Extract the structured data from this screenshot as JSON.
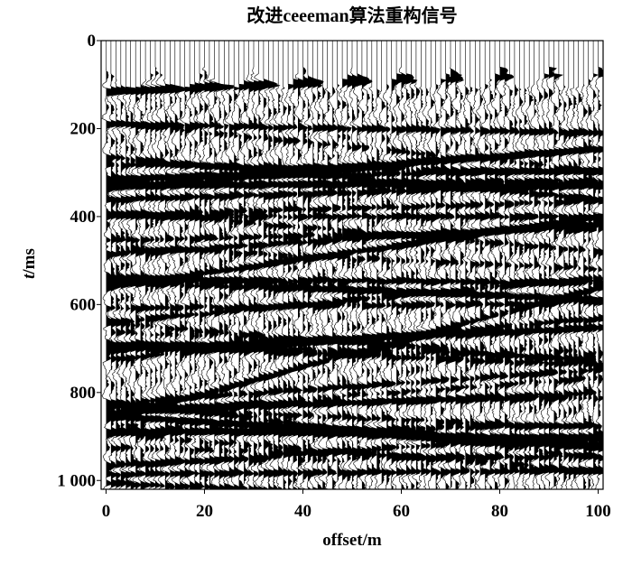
{
  "chart_data": {
    "type": "seismic-wiggle",
    "title": "改进ceeeman算法重构信号",
    "x_label": "offset/m",
    "y_label_italic": "t",
    "y_label": "/ms",
    "xlim": [
      -1,
      101
    ],
    "xticks": [
      0,
      20,
      40,
      60,
      80,
      100
    ],
    "ylim": [
      0,
      1020
    ],
    "yticks": [
      0,
      200,
      400,
      600,
      800,
      {
        "value": 1000,
        "label": "1 000"
      }
    ],
    "y_inverted": true
  }
}
